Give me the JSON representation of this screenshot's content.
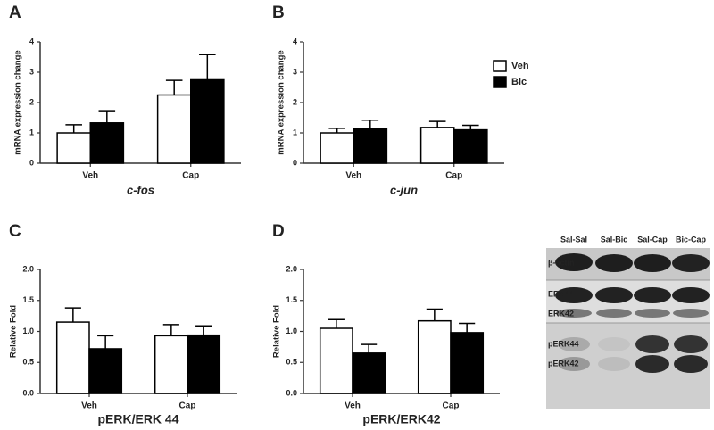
{
  "chart_data": [
    {
      "type": "bar",
      "panel": "A",
      "ylabel": "mRNA expression change",
      "xlabel": "c-fos",
      "categories": [
        "Veh",
        "Cap"
      ],
      "series": [
        {
          "color": "#ffffff",
          "values": [
            1.0,
            2.25
          ],
          "errors": [
            0.27,
            0.48
          ]
        },
        {
          "color": "#000000",
          "values": [
            1.33,
            2.78
          ],
          "errors": [
            0.4,
            0.8
          ]
        }
      ],
      "ylim": [
        0,
        4
      ],
      "yticks": [
        0,
        1,
        2,
        3,
        4
      ]
    },
    {
      "type": "bar",
      "panel": "B",
      "ylabel": "mRNA expression change",
      "xlabel": "c-jun",
      "categories": [
        "Veh",
        "Cap"
      ],
      "series": [
        {
          "color": "#ffffff",
          "values": [
            1.0,
            1.18
          ],
          "errors": [
            0.15,
            0.2
          ]
        },
        {
          "color": "#000000",
          "values": [
            1.15,
            1.1
          ],
          "errors": [
            0.27,
            0.15
          ]
        }
      ],
      "ylim": [
        0,
        4
      ],
      "yticks": [
        0,
        1,
        2,
        3,
        4
      ]
    },
    {
      "type": "bar",
      "panel": "C",
      "ylabel": "Relative Fold",
      "xlabel": "pERK/ERK 44",
      "categories": [
        "Veh",
        "Cap"
      ],
      "series": [
        {
          "color": "#ffffff",
          "values": [
            1.15,
            0.93
          ],
          "errors": [
            0.23,
            0.18
          ]
        },
        {
          "color": "#000000",
          "values": [
            0.72,
            0.94
          ],
          "errors": [
            0.21,
            0.15
          ]
        }
      ],
      "ylim": [
        0,
        2
      ],
      "yticks": [
        {
          "value": 0,
          "label": "0.0"
        },
        0.5,
        {
          "value": 1,
          "label": "1.0"
        },
        1.5,
        {
          "value": 2,
          "label": "2.0"
        }
      ]
    },
    {
      "type": "bar",
      "panel": "D",
      "ylabel": "Relative Fold",
      "xlabel": "pERK/ERK42",
      "categories": [
        "Veh",
        "Cap"
      ],
      "series": [
        {
          "color": "#ffffff",
          "values": [
            1.05,
            1.17
          ],
          "errors": [
            0.14,
            0.19
          ]
        },
        {
          "color": "#000000",
          "values": [
            0.65,
            0.98
          ],
          "errors": [
            0.14,
            0.15
          ]
        }
      ],
      "ylim": [
        0,
        2
      ],
      "yticks": [
        {
          "value": 0,
          "label": "0.0"
        },
        0.5,
        {
          "value": 1,
          "label": "1.0"
        },
        1.5,
        {
          "value": 2,
          "label": "2.0"
        }
      ]
    }
  ],
  "legend": [
    {
      "name": "Veh",
      "color": "#ffffff"
    },
    {
      "name": "Bic",
      "color": "#000000"
    }
  ],
  "blot": {
    "lanes": [
      "Sal-Sal",
      "Sal-Bic",
      "Sal-Cap",
      "Bic-Cap"
    ],
    "bands": [
      "β-actin",
      "ERK44",
      "ERK42",
      "pERK44",
      "pERK42"
    ]
  }
}
